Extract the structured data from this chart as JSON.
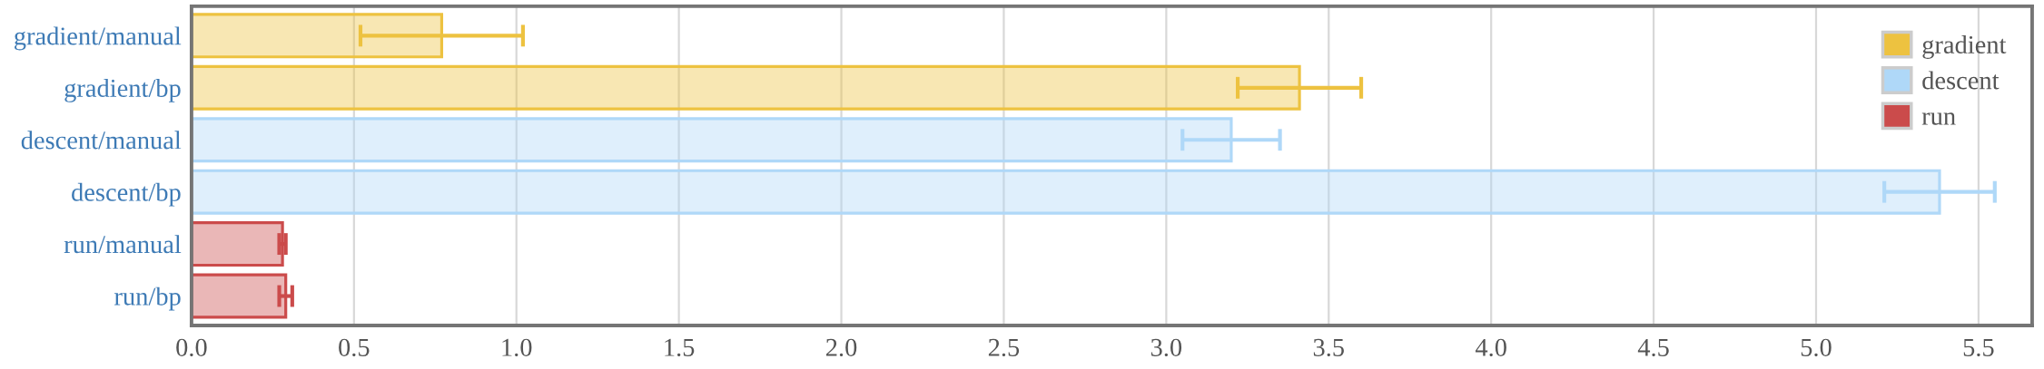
{
  "chart_data": {
    "type": "bar",
    "orientation": "horizontal",
    "categories": [
      "gradient/manual",
      "gradient/bp",
      "descent/manual",
      "descent/bp",
      "run/manual",
      "run/bp"
    ],
    "series": [
      {
        "name": "gradient",
        "color": "#edc240",
        "values": [
          0.77,
          3.41,
          null,
          null,
          null,
          null
        ],
        "errors": [
          0.25,
          0.19,
          null,
          null,
          null,
          null
        ]
      },
      {
        "name": "descent",
        "color": "#afd8f8",
        "values": [
          null,
          null,
          3.2,
          5.38,
          null,
          null
        ],
        "errors": [
          null,
          null,
          0.15,
          0.17,
          null,
          null
        ]
      },
      {
        "name": "run",
        "color": "#cb4b4b",
        "values": [
          null,
          null,
          null,
          null,
          0.28,
          0.29
        ],
        "errors": [
          null,
          null,
          null,
          null,
          0.01,
          0.02
        ]
      }
    ],
    "xlim": [
      0,
      5.665
    ],
    "xticks": [
      {
        "value": 0,
        "label": "0.0"
      },
      0.5,
      {
        "value": 1,
        "label": "1.0"
      },
      1.5,
      {
        "value": 2,
        "label": "2.0"
      },
      2.5,
      {
        "value": 3,
        "label": "3.0"
      },
      3.5,
      {
        "value": 4,
        "label": "4.0"
      },
      4.5,
      {
        "value": 5,
        "label": "5.0"
      },
      5.5
    ],
    "grid": "x",
    "legend": "top right"
  }
}
